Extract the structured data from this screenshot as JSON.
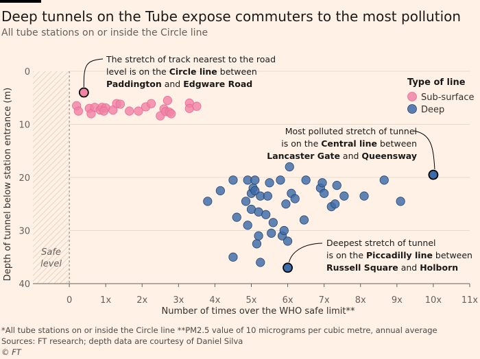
{
  "header": {
    "title": "Deep tunnels on the Tube expose commuters to the most pollution",
    "subtitle": "All tube stations on or inside the Circle line"
  },
  "footer": {
    "note": "*All tube stations on or inside the Circle line    **PM2.5 value of 10 micrograms per cubic metre, annual average",
    "sources": "Sources: FT research; depth data are courtesy of Daniel Silva",
    "credit": "© FT"
  },
  "colors": {
    "background": "#fff1e5",
    "sub_surface": "#f083a6",
    "deep": "#3d6aa8",
    "deep_stroke": "#22476f",
    "grid": "#e6d9ce"
  },
  "chart_data": {
    "type": "scatter",
    "xlabel": "Number of times over the WHO safe limit**",
    "ylabel": "Depth of tunnel below station entrance (m)",
    "xlim": [
      -1,
      11
    ],
    "ylim": [
      0,
      40
    ],
    "y_inverted": true,
    "x_ticks": [
      {
        "v": 0,
        "label": "0"
      },
      {
        "v": 1,
        "label": "1x"
      },
      {
        "v": 2,
        "label": "2x"
      },
      {
        "v": 3,
        "label": "3x"
      },
      {
        "v": 4,
        "label": "4x"
      },
      {
        "v": 5,
        "label": "5x"
      },
      {
        "v": 6,
        "label": "6x"
      },
      {
        "v": 7,
        "label": "7x"
      },
      {
        "v": 8,
        "label": "8x"
      },
      {
        "v": 9,
        "label": "9x"
      },
      {
        "v": 10,
        "label": "10x"
      },
      {
        "v": 11,
        "label": "11x"
      }
    ],
    "y_ticks": [
      {
        "v": 0,
        "label": "0"
      },
      {
        "v": 10,
        "label": "10"
      },
      {
        "v": 20,
        "label": "20"
      },
      {
        "v": 30,
        "label": "30"
      },
      {
        "v": 40,
        "label": "40"
      }
    ],
    "grid": "horizontal",
    "safe_zone": {
      "x_from": -1,
      "x_to": 0,
      "label": [
        "Safe",
        "level"
      ]
    },
    "legend": {
      "title": "Type of line",
      "position": "right",
      "items": [
        {
          "name": "Sub-surface",
          "color": "#f083a6"
        },
        {
          "name": "Deep",
          "color": "#3d6aa8"
        }
      ]
    },
    "series": [
      {
        "name": "Sub-surface",
        "color": "#f083a6",
        "points": [
          [
            0.4,
            4
          ],
          [
            0.2,
            6.5
          ],
          [
            0.25,
            7.5
          ],
          [
            0.55,
            7
          ],
          [
            0.6,
            8
          ],
          [
            0.7,
            6.8
          ],
          [
            0.85,
            7.3
          ],
          [
            0.9,
            6.8
          ],
          [
            1.0,
            6.9
          ],
          [
            0.95,
            7.5
          ],
          [
            1.2,
            7.3
          ],
          [
            1.3,
            6.1
          ],
          [
            1.4,
            6.2
          ],
          [
            1.65,
            7.5
          ],
          [
            1.9,
            7.5
          ],
          [
            2.1,
            6.7
          ],
          [
            2.25,
            6.1
          ],
          [
            2.5,
            8.4
          ],
          [
            2.6,
            7.1
          ],
          [
            2.7,
            5.5
          ],
          [
            2.65,
            7.6
          ],
          [
            2.75,
            7.7
          ],
          [
            2.8,
            8.0
          ],
          [
            3.3,
            6.0
          ],
          [
            3.3,
            7.0
          ],
          [
            3.5,
            6.6
          ]
        ]
      },
      {
        "name": "Deep",
        "color": "#3d6aa8",
        "points": [
          [
            3.8,
            24.5
          ],
          [
            4.15,
            22.5
          ],
          [
            4.5,
            20.5
          ],
          [
            4.6,
            27.5
          ],
          [
            4.5,
            35
          ],
          [
            4.85,
            24.5
          ],
          [
            4.9,
            20.5
          ],
          [
            4.9,
            29
          ],
          [
            5.0,
            26
          ],
          [
            5.0,
            23
          ],
          [
            5.05,
            22
          ],
          [
            5.1,
            22.5
          ],
          [
            5.1,
            20.5
          ],
          [
            5.15,
            32.5
          ],
          [
            5.2,
            31
          ],
          [
            5.2,
            26.5
          ],
          [
            5.25,
            36
          ],
          [
            5.25,
            23.5
          ],
          [
            5.4,
            27
          ],
          [
            5.45,
            23.5
          ],
          [
            5.5,
            21
          ],
          [
            5.55,
            30.5
          ],
          [
            5.6,
            28.5
          ],
          [
            5.8,
            20.5
          ],
          [
            5.85,
            31
          ],
          [
            5.9,
            30
          ],
          [
            5.95,
            25
          ],
          [
            6.0,
            32
          ],
          [
            6.05,
            18
          ],
          [
            6.1,
            23
          ],
          [
            6.2,
            24
          ],
          [
            6.45,
            28
          ],
          [
            6.5,
            20.5
          ],
          [
            6.9,
            22
          ],
          [
            6.95,
            21
          ],
          [
            7.0,
            23
          ],
          [
            7.2,
            25.5
          ],
          [
            7.3,
            25
          ],
          [
            7.35,
            21.5
          ],
          [
            7.55,
            23.5
          ],
          [
            8.1,
            23.5
          ],
          [
            8.65,
            20.5
          ],
          [
            9.1,
            24.5
          ]
        ]
      }
    ],
    "highlighted": [
      {
        "series": "Sub-surface",
        "x": 0.4,
        "y": 4
      },
      {
        "series": "Deep",
        "x": 10.0,
        "y": 19.5
      },
      {
        "series": "Deep",
        "x": 6.0,
        "y": 37
      }
    ],
    "annotations": [
      {
        "lines": [
          [
            {
              "t": "The stretch of track nearest to the road",
              "b": false
            }
          ],
          [
            {
              "t": "level is on the ",
              "b": false
            },
            {
              "t": "Circle line",
              "b": true
            },
            {
              "t": " between",
              "b": false
            }
          ],
          [
            {
              "t": "Paddington",
              "b": true
            },
            {
              "t": " and ",
              "b": false
            },
            {
              "t": "Edgware Road",
              "b": true
            }
          ]
        ]
      },
      {
        "lines": [
          [
            {
              "t": "Most polluted stretch of tunnel",
              "b": false
            }
          ],
          [
            {
              "t": "is on the ",
              "b": false
            },
            {
              "t": "Central line",
              "b": true
            },
            {
              "t": " between",
              "b": false
            }
          ],
          [
            {
              "t": "Lancaster Gate",
              "b": true
            },
            {
              "t": " and ",
              "b": false
            },
            {
              "t": "Queensway",
              "b": true
            }
          ]
        ]
      },
      {
        "lines": [
          [
            {
              "t": "Deepest stretch of tunnel",
              "b": false
            }
          ],
          [
            {
              "t": "is on the ",
              "b": false
            },
            {
              "t": "Piccadilly line",
              "b": true
            },
            {
              "t": " between",
              "b": false
            }
          ],
          [
            {
              "t": "Russell Square",
              "b": true
            },
            {
              "t": " and ",
              "b": false
            },
            {
              "t": "Holborn",
              "b": true
            }
          ]
        ]
      }
    ]
  }
}
